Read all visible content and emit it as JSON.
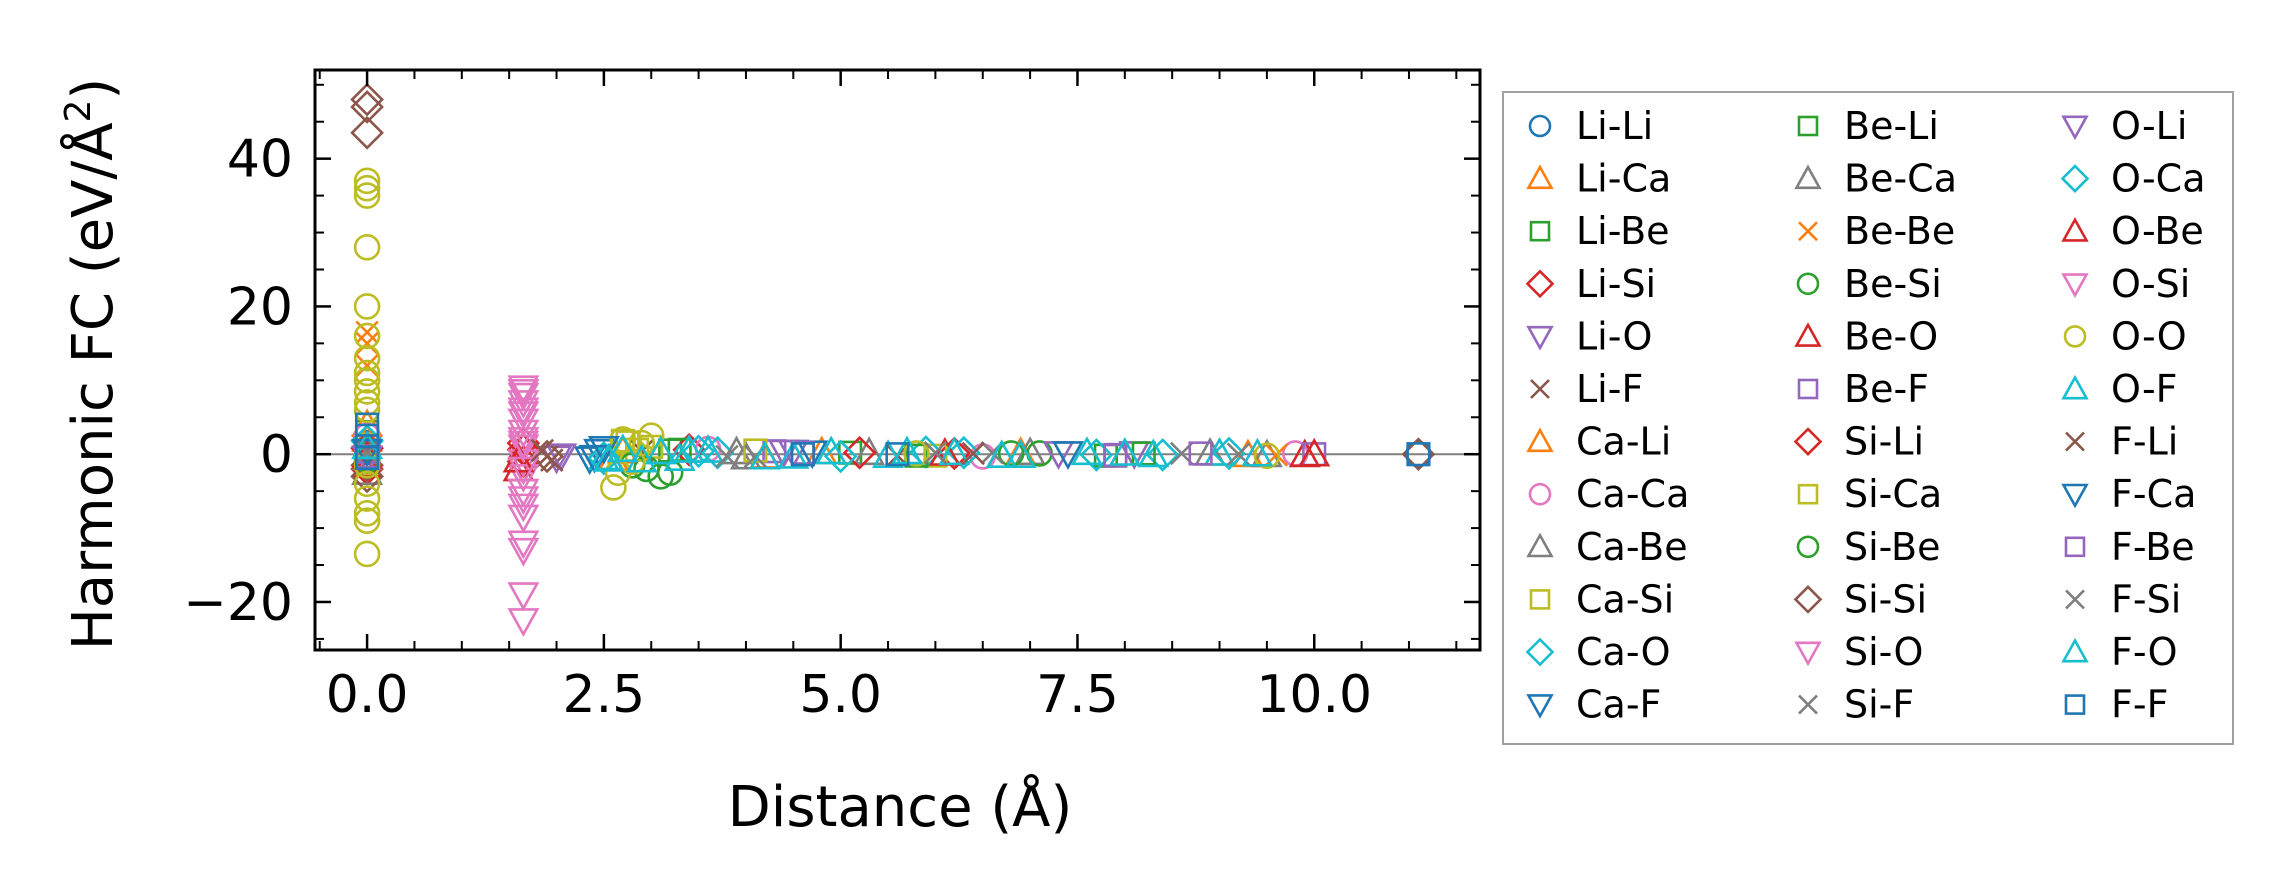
{
  "chart_data": {
    "type": "scatter",
    "title": "",
    "xlabel": "Distance (Å)",
    "ylabel_main": "Harmonic FC (eV/Å",
    "ylabel_sup": "2",
    "ylabel_tail": ")",
    "xlim": [
      -0.55,
      11.75
    ],
    "ylim": [
      -26.5,
      52
    ],
    "xticks": [
      0,
      2.5,
      5,
      7.5,
      10
    ],
    "xtick_labels": [
      "0.0",
      "2.5",
      "5.0",
      "7.5",
      "10.0"
    ],
    "yticks": [
      -20,
      0,
      20,
      40
    ],
    "ytick_labels": [
      "−20",
      "0",
      "20",
      "40"
    ],
    "zero_line": true,
    "legend_position": "right-outside",
    "series": [
      {
        "name": "Li-Li",
        "color": "#1f77b4",
        "marker": "circle",
        "x": [
          0,
          0,
          0,
          11.1
        ],
        "y": [
          1.5,
          -1.2,
          0.5,
          0
        ]
      },
      {
        "name": "Li-Ca",
        "color": "#ff7f0e",
        "marker": "triangle-up",
        "x": [
          0,
          2.7,
          4.2,
          6.9
        ],
        "y": [
          2,
          0.4,
          -0.3,
          0.2
        ]
      },
      {
        "name": "Li-Be",
        "color": "#2ca02c",
        "marker": "square",
        "x": [
          0,
          3.2,
          5.1,
          7.8
        ],
        "y": [
          3,
          0.5,
          0.2,
          -0.2
        ]
      },
      {
        "name": "Li-Si",
        "color": "#d62728",
        "marker": "diamond",
        "x": [
          0,
          1.65,
          3.4,
          6.2
        ],
        "y": [
          -2,
          1.5,
          0.6,
          0.1
        ]
      },
      {
        "name": "Li-O",
        "color": "#9467bd",
        "marker": "triangle-down",
        "x": [
          0,
          2.0,
          4.5,
          8.1
        ],
        "y": [
          1,
          -0.5,
          0.3,
          0.1
        ]
      },
      {
        "name": "Li-F",
        "color": "#8c564b",
        "marker": "x",
        "x": [
          0,
          1.9,
          2.9,
          5.6
        ],
        "y": [
          -1,
          -0.3,
          0.4,
          -0.2
        ]
      },
      {
        "name": "Ca-Li",
        "color": "#ff7f0e",
        "marker": "triangle-up",
        "x": [
          0,
          2.6,
          4.8,
          9.3
        ],
        "y": [
          4,
          -0.6,
          0.3,
          -0.1
        ]
      },
      {
        "name": "Ca-Ca",
        "color": "#e377c2",
        "marker": "circle",
        "x": [
          0,
          3.6,
          6.5,
          9.8
        ],
        "y": [
          2.5,
          0.7,
          -0.3,
          0.1
        ]
      },
      {
        "name": "Ca-Be",
        "color": "#7f7f7f",
        "marker": "triangle-up",
        "x": [
          0,
          4.0,
          5.3,
          8.9
        ],
        "y": [
          -2.5,
          -0.4,
          0.2,
          0.1
        ]
      },
      {
        "name": "Ca-Si",
        "color": "#bcbd22",
        "marker": "square",
        "x": [
          0,
          2.75,
          3.0,
          6.0
        ],
        "y": [
          1.2,
          1.6,
          1.0,
          -0.2
        ]
      },
      {
        "name": "Ca-O",
        "color": "#17becf",
        "marker": "diamond",
        "x": [
          0,
          2.5,
          3.7,
          5.9,
          8.4
        ],
        "y": [
          0.8,
          -0.5,
          0.2,
          0.3,
          -0.1
        ]
      },
      {
        "name": "Ca-F",
        "color": "#1f77b4",
        "marker": "triangle-down",
        "x": [
          0,
          2.35,
          2.45,
          4.7
        ],
        "y": [
          -0.5,
          -0.6,
          0.4,
          0.2
        ]
      },
      {
        "name": "Be-Li",
        "color": "#2ca02c",
        "marker": "square",
        "x": [
          0,
          3.3,
          5.8,
          8.2
        ],
        "y": [
          0.5,
          0.6,
          -0.2,
          0.1
        ]
      },
      {
        "name": "Be-Ca",
        "color": "#7f7f7f",
        "marker": "triangle-up",
        "x": [
          0,
          3.9,
          7.0,
          9.5
        ],
        "y": [
          -0.5,
          0.3,
          0.2,
          -0.1
        ]
      },
      {
        "name": "Be-Be",
        "color": "#ff7f0e",
        "marker": "x",
        "x": [
          0,
          0,
          0,
          9.6
        ],
        "y": [
          16.5,
          15,
          12,
          -0.1
        ]
      },
      {
        "name": "Be-Si",
        "color": "#2ca02c",
        "marker": "circle",
        "x": [
          0,
          3.1,
          2.95,
          6.8
        ],
        "y": [
          -0.8,
          -3.0,
          -2.0,
          0.1
        ]
      },
      {
        "name": "Be-O",
        "color": "#d62728",
        "marker": "triangle-up",
        "x": [
          0,
          1.6,
          1.65,
          9.9
        ],
        "y": [
          -1.5,
          -2.0,
          1.0,
          -0.1
        ]
      },
      {
        "name": "Be-F",
        "color": "#9467bd",
        "marker": "square",
        "x": [
          0,
          4.3,
          7.9,
          10.0
        ],
        "y": [
          0.3,
          0.4,
          -0.1,
          0.0
        ]
      },
      {
        "name": "Si-Li",
        "color": "#d62728",
        "marker": "diamond",
        "x": [
          0,
          1.65,
          1.65,
          5.2
        ],
        "y": [
          0.8,
          -1.0,
          0.6,
          0.2
        ]
      },
      {
        "name": "Si-Ca",
        "color": "#bcbd22",
        "marker": "square",
        "x": [
          0,
          2.7,
          2.85,
          4.1
        ],
        "y": [
          -1.2,
          1.8,
          0.6,
          0.5
        ]
      },
      {
        "name": "Si-Be",
        "color": "#2ca02c",
        "marker": "circle",
        "x": [
          0,
          2.8,
          3.2,
          7.1
        ],
        "y": [
          -0.6,
          -1.5,
          -2.5,
          0.1
        ]
      },
      {
        "name": "Si-Si",
        "color": "#8c564b",
        "marker": "diamond",
        "x": [
          0,
          0,
          0,
          0,
          0,
          1.9,
          11.1
        ],
        "y": [
          48,
          47,
          43.5,
          -3,
          -1.5,
          -0.3,
          0
        ]
      },
      {
        "name": "Si-O",
        "color": "#e377c2",
        "marker": "triangle-down",
        "x": [
          1.65,
          1.65,
          1.65,
          1.65,
          1.65,
          1.65,
          1.65,
          1.65,
          1.65,
          1.65,
          1.65,
          1.65,
          1.65,
          1.65,
          1.65,
          1.65
        ],
        "y": [
          9,
          8,
          7,
          6,
          4.5,
          3,
          2,
          1,
          -1,
          -3,
          -5,
          -7,
          -8.5,
          -12,
          -19,
          -22.5
        ]
      },
      {
        "name": "Si-F",
        "color": "#7f7f7f",
        "marker": "x",
        "x": [
          0,
          4.1,
          6.6,
          8.6
        ],
        "y": [
          0.6,
          -0.3,
          0.2,
          0.1
        ]
      },
      {
        "name": "O-Li",
        "color": "#9467bd",
        "marker": "triangle-down",
        "x": [
          0,
          2.05,
          4.4,
          7.3
        ],
        "y": [
          -0.5,
          -0.2,
          0.3,
          0.1
        ]
      },
      {
        "name": "O-Ca",
        "color": "#17becf",
        "marker": "diamond",
        "x": [
          0,
          2.5,
          3.5,
          5.0,
          6.3,
          7.7,
          9.1
        ],
        "y": [
          1.8,
          -0.6,
          0.4,
          -0.3,
          0.2,
          -0.1,
          0.1
        ]
      },
      {
        "name": "O-Be",
        "color": "#d62728",
        "marker": "triangle-up",
        "x": [
          0,
          1.6,
          6.1,
          10.0
        ],
        "y": [
          -0.3,
          -0.8,
          0.1,
          0.0
        ]
      },
      {
        "name": "O-Si",
        "color": "#e377c2",
        "marker": "triangle-down",
        "x": [
          1.65,
          1.65,
          1.65,
          1.65,
          1.65,
          1.65
        ],
        "y": [
          8.5,
          5.5,
          1.5,
          -2,
          -6,
          -13
        ]
      },
      {
        "name": "O-O",
        "color": "#bcbd22",
        "marker": "circle",
        "x": [
          0,
          0,
          0,
          0,
          0,
          0,
          0,
          0,
          0,
          0,
          0,
          0,
          0,
          0,
          0,
          0,
          0,
          0,
          2.6,
          2.65,
          2.7,
          2.8,
          2.9,
          3.0,
          5.8,
          9.5
        ],
        "y": [
          37,
          36,
          35,
          28,
          20,
          16,
          13,
          11,
          10,
          8.5,
          7,
          6,
          -1.5,
          -4,
          -6,
          -8,
          -9,
          -13.5,
          -4.5,
          -2.5,
          2.0,
          -1.0,
          1.5,
          2.5,
          0.1,
          -0.2
        ]
      },
      {
        "name": "O-F",
        "color": "#17becf",
        "marker": "triangle-up",
        "x": [
          2.5,
          2.7,
          2.9,
          3.1,
          3.3,
          3.6,
          4.2,
          4.9,
          5.5,
          6.2,
          6.9,
          7.6,
          8.3,
          9.0
        ],
        "y": [
          -0.5,
          0.6,
          -0.8,
          0.3,
          -0.6,
          0.5,
          -0.4,
          0.3,
          -0.2,
          0.2,
          -0.2,
          0.2,
          -0.1,
          0.1
        ]
      },
      {
        "name": "F-Li",
        "color": "#8c564b",
        "marker": "x",
        "x": [
          0,
          1.85,
          1.95,
          6.4
        ],
        "y": [
          0.3,
          0.5,
          -0.8,
          0.1
        ]
      },
      {
        "name": "F-Ca",
        "color": "#1f77b4",
        "marker": "triangle-down",
        "x": [
          0,
          2.4,
          2.5,
          7.4
        ],
        "y": [
          0.4,
          -0.4,
          0.8,
          0.1
        ]
      },
      {
        "name": "F-Be",
        "color": "#9467bd",
        "marker": "square",
        "x": [
          0,
          4.6,
          7.9,
          8.8
        ],
        "y": [
          -0.3,
          0.2,
          -0.2,
          0.1
        ]
      },
      {
        "name": "F-Si",
        "color": "#7f7f7f",
        "marker": "x",
        "x": [
          0,
          3.8,
          6.0,
          9.2
        ],
        "y": [
          0.2,
          -0.3,
          0.2,
          0.0
        ]
      },
      {
        "name": "F-O",
        "color": "#17becf",
        "marker": "triangle-up",
        "x": [
          0,
          2.55,
          3.4,
          4.5,
          5.7,
          6.7,
          8.0,
          9.4
        ],
        "y": [
          1.0,
          -0.7,
          0.5,
          -0.3,
          0.3,
          -0.2,
          0.1,
          0.0
        ]
      },
      {
        "name": "F-F",
        "color": "#1f77b4",
        "marker": "square",
        "x": [
          0,
          0,
          0,
          4.6,
          5.6,
          11.1
        ],
        "y": [
          4,
          2.5,
          -0.5,
          0.0,
          0.0,
          0
        ]
      }
    ]
  }
}
